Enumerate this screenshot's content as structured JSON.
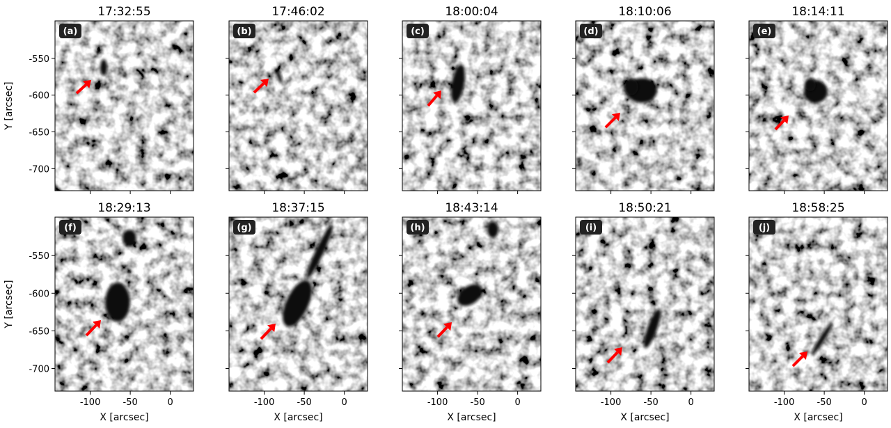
{
  "figure": {
    "x_label": "X [arcsec]",
    "y_label": "Y [arcsec]",
    "xlim": [
      -144,
      29
    ],
    "ylim": [
      -730,
      -499
    ],
    "xticks": [
      -100,
      -50,
      0
    ],
    "yticks": [
      -550,
      -600,
      -650,
      -700
    ],
    "panels": [
      {
        "label": "(a)",
        "time": "17:32:55"
      },
      {
        "label": "(b)",
        "time": "17:46:02"
      },
      {
        "label": "(c)",
        "time": "18:00:04"
      },
      {
        "label": "(d)",
        "time": "18:10:06"
      },
      {
        "label": "(e)",
        "time": "18:14:11"
      },
      {
        "label": "(f)",
        "time": "18:29:13"
      },
      {
        "label": "(g)",
        "time": "18:37:15"
      },
      {
        "label": "(h)",
        "time": "18:43:14"
      },
      {
        "label": "(i)",
        "time": "18:50:21"
      },
      {
        "label": "(j)",
        "time": "18:58:25"
      }
    ]
  }
}
